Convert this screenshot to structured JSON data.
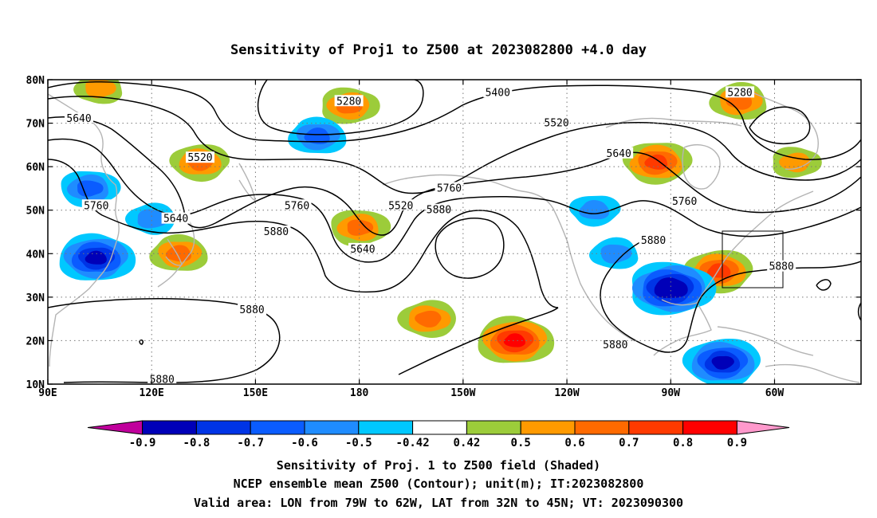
{
  "chart_data": {
    "type": "heatmap",
    "title": "Sensitivity of Proj1 to Z500 at 2023082800 +4.0 day",
    "x_ticks": [
      "90E",
      "120E",
      "150E",
      "180",
      "150W",
      "120W",
      "90W",
      "60W"
    ],
    "y_ticks": [
      "10N",
      "20N",
      "30N",
      "40N",
      "50N",
      "60N",
      "70N",
      "80N"
    ],
    "xlim_deg_east": [
      90,
      325
    ],
    "ylim_deg_north": [
      10,
      80
    ],
    "grid": true,
    "colorbar": {
      "labels": [
        "-0.9",
        "-0.8",
        "-0.7",
        "-0.6",
        "-0.5",
        "-0.42",
        "0.42",
        "0.5",
        "0.6",
        "0.7",
        "0.8",
        "0.9"
      ],
      "colors": [
        "#c0009c",
        "#0000b8",
        "#0034e6",
        "#0a5cff",
        "#1f8cff",
        "#00c8ff",
        "#ffffff",
        "#9ccc3a",
        "#ff9a00",
        "#ff6a00",
        "#ff3a00",
        "#ff0000",
        "#ff99cc"
      ]
    },
    "contour_labels": [
      {
        "value": "5280",
        "lon": 177,
        "lat": 75
      },
      {
        "value": "5280",
        "lon": 290,
        "lat": 77
      },
      {
        "value": "5400",
        "lon": 220,
        "lat": 77
      },
      {
        "value": "5520",
        "lon": 237,
        "lat": 70
      },
      {
        "value": "5520",
        "lon": 134,
        "lat": 62
      },
      {
        "value": "5520",
        "lon": 192,
        "lat": 51
      },
      {
        "value": "5640",
        "lon": 99,
        "lat": 71
      },
      {
        "value": "5640",
        "lon": 127,
        "lat": 48
      },
      {
        "value": "5640",
        "lon": 181,
        "lat": 41
      },
      {
        "value": "5640",
        "lon": 255,
        "lat": 63
      },
      {
        "value": "5760",
        "lon": 104,
        "lat": 51
      },
      {
        "value": "5760",
        "lon": 162,
        "lat": 51
      },
      {
        "value": "5760",
        "lon": 206,
        "lat": 55
      },
      {
        "value": "5760",
        "lon": 274,
        "lat": 52
      },
      {
        "value": "5880",
        "lon": 156,
        "lat": 45
      },
      {
        "value": "5880",
        "lon": 203,
        "lat": 50
      },
      {
        "value": "5880",
        "lon": 265,
        "lat": 43
      },
      {
        "value": "5880",
        "lon": 302,
        "lat": 37
      },
      {
        "value": "5880",
        "lon": 149,
        "lat": 27
      },
      {
        "value": "5880",
        "lon": 254,
        "lat": 19
      },
      {
        "value": "5880",
        "lon": 123,
        "lat": 11
      }
    ],
    "shaded_regions": [
      {
        "sign": "positive",
        "max_level": "0.5",
        "lon": 105,
        "lat": 78
      },
      {
        "sign": "positive",
        "max_level": "0.6",
        "lon": 177,
        "lat": 74
      },
      {
        "sign": "positive",
        "max_level": "0.6",
        "lon": 134,
        "lat": 61
      },
      {
        "sign": "positive",
        "max_level": "0.6",
        "lon": 128,
        "lat": 40
      },
      {
        "sign": "positive",
        "max_level": "0.6",
        "lon": 180,
        "lat": 46
      },
      {
        "sign": "positive",
        "max_level": "0.6",
        "lon": 200,
        "lat": 25
      },
      {
        "sign": "positive",
        "max_level": "0.8",
        "lon": 225,
        "lat": 20
      },
      {
        "sign": "positive",
        "max_level": "0.7",
        "lon": 266,
        "lat": 61
      },
      {
        "sign": "positive",
        "max_level": "0.6",
        "lon": 290,
        "lat": 75
      },
      {
        "sign": "positive",
        "max_level": "0.5",
        "lon": 306,
        "lat": 61
      },
      {
        "sign": "positive",
        "max_level": "0.7",
        "lon": 284,
        "lat": 36
      },
      {
        "sign": "negative",
        "max_level": "-0.6",
        "lon": 168,
        "lat": 67
      },
      {
        "sign": "negative",
        "max_level": "-0.6",
        "lon": 102,
        "lat": 55
      },
      {
        "sign": "negative",
        "max_level": "-0.5",
        "lon": 120,
        "lat": 48
      },
      {
        "sign": "negative",
        "max_level": "-0.8",
        "lon": 104,
        "lat": 39
      },
      {
        "sign": "negative",
        "max_level": "-0.5",
        "lon": 248,
        "lat": 50
      },
      {
        "sign": "negative",
        "max_level": "-0.5",
        "lon": 254,
        "lat": 40
      },
      {
        "sign": "negative",
        "max_level": "-0.9",
        "lon": 270,
        "lat": 32
      },
      {
        "sign": "negative",
        "max_level": "-0.8",
        "lon": 285,
        "lat": 15
      }
    ],
    "valid_area": {
      "lon_from": "79W",
      "lon_to": "62W",
      "lat_from": "32N",
      "lat_to": "45N"
    }
  },
  "footer": {
    "line1": "Sensitivity of Proj. 1 to Z500 field (Shaded)",
    "line2": "NCEP ensemble mean Z500 (Contour); unit(m); IT:2023082800",
    "line3": "Valid area: LON from 79W to 62W, LAT from 32N to 45N; VT: 2023090300"
  }
}
